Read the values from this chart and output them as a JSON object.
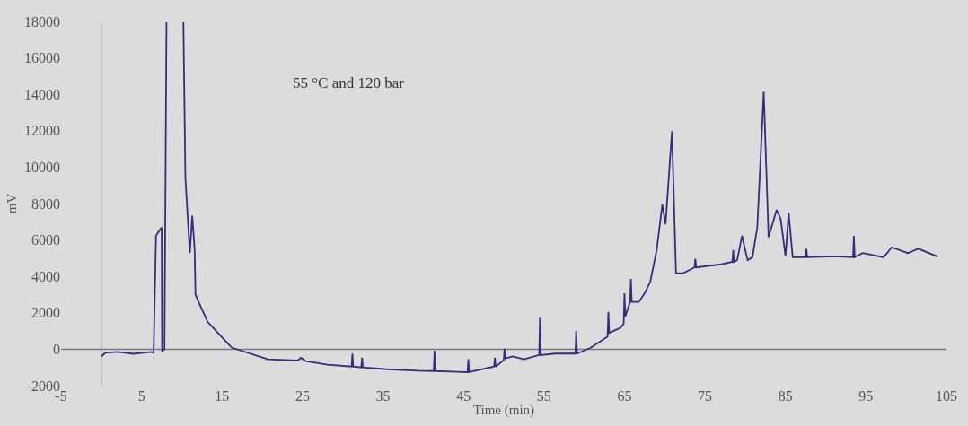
{
  "chart_data": {
    "type": "line",
    "xlabel": "Time (min)",
    "ylabel": "mV",
    "annotations": [
      "55 °C and 120 bar"
    ],
    "xlim": [
      -5,
      105
    ],
    "xticks": [
      -5,
      5,
      15,
      25,
      35,
      45,
      55,
      65,
      75,
      85,
      95,
      105
    ],
    "ylim": [
      -2000,
      18000
    ],
    "yticks": [
      -2000,
      0,
      2000,
      4000,
      6000,
      8000,
      10000,
      12000,
      14000,
      16000,
      18000
    ],
    "ref_lines": [
      {
        "axis": "x",
        "value": 0,
        "color": "#a8a8a8"
      },
      {
        "axis": "y",
        "value": 0,
        "color": "#7a7a7a"
      }
    ],
    "grid": false,
    "marker": "none",
    "line_style": "solid",
    "series": [
      {
        "color": "#3b2a7a",
        "x": [
          0,
          0.5,
          2,
          4,
          6.2,
          6.5,
          6.8,
          7.5,
          7.55,
          7.85,
          8.1,
          9.2,
          10.2,
          10.45,
          11.0,
          11.3,
          11.6,
          11.7,
          13.2,
          16.2,
          20.7,
          24.4,
          24.8,
          25.4,
          28.1,
          31.1,
          31.2,
          31.3,
          32.3,
          32.4,
          32.5,
          35.5,
          39.3,
          41.3,
          41.4,
          41.5,
          45.5,
          45.6,
          45.7,
          48.8,
          48.9,
          49.0,
          50.0,
          50.1,
          50.2,
          51.1,
          52.5,
          54.4,
          54.5,
          54.6,
          56.4,
          58.9,
          59.0,
          59.1,
          60.8,
          62.7,
          62.9,
          63.0,
          63.1,
          64.5,
          64.9,
          65.0,
          65.1,
          65.7,
          65.8,
          65.9,
          66.8,
          67.5,
          68.2,
          69.0,
          69.7,
          70.1,
          70.9,
          71.4,
          72.3,
          73.7,
          73.8,
          73.9,
          76.8,
          78.4,
          78.5,
          78.6,
          79.0,
          79.6,
          80.3,
          80.9,
          81.5,
          82.3,
          82.9,
          83.9,
          84.4,
          85.0,
          85.4,
          85.9,
          87.5,
          87.6,
          87.7,
          91.1,
          93.4,
          93.5,
          93.6,
          94.6,
          97.2,
          98.2,
          100.2,
          101.5,
          103.9
        ],
        "values": [
          -400,
          -200,
          -150,
          -250,
          -150,
          -200,
          6240,
          6700,
          -100,
          0,
          18000,
          null,
          18000,
          9380,
          5280,
          7330,
          5440,
          2990,
          1510,
          90,
          -550,
          -620,
          -470,
          -650,
          -850,
          -950,
          -240,
          -950,
          -1000,
          -470,
          -1000,
          -1100,
          -1180,
          -1200,
          -80,
          -1200,
          -1260,
          -550,
          -1260,
          -950,
          -470,
          -950,
          -600,
          30,
          -500,
          -390,
          -550,
          -320,
          1730,
          -320,
          -240,
          -240,
          1020,
          -240,
          80,
          630,
          700,
          2050,
          900,
          1180,
          1400,
          3070,
          1800,
          2600,
          3860,
          2600,
          2600,
          3070,
          3700,
          5440,
          7960,
          6860,
          11980,
          4180,
          4180,
          4490,
          4970,
          4490,
          4650,
          4800,
          5440,
          4800,
          4890,
          6230,
          4890,
          5050,
          6700,
          14140,
          6150,
          7650,
          7170,
          5120,
          7490,
          5050,
          5050,
          5520,
          5050,
          5100,
          5050,
          6230,
          5050,
          5280,
          5050,
          5600,
          5280,
          5520,
          5090
        ]
      }
    ]
  }
}
